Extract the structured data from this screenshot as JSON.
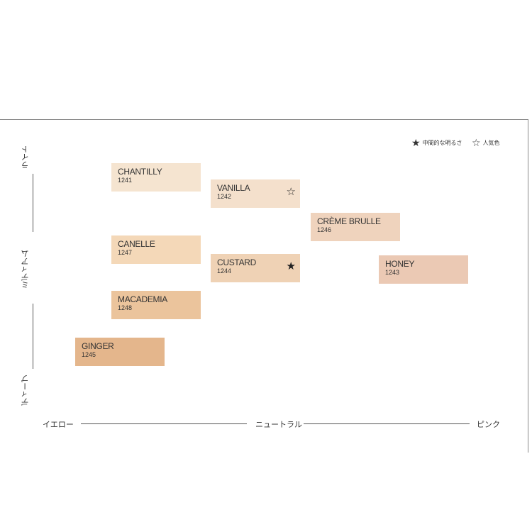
{
  "legend": {
    "mid_brightness": {
      "icon": "filled-star",
      "glyph": "★",
      "label": "中間的な明るさ"
    },
    "popular": {
      "icon": "outline-star",
      "glyph": "☆",
      "label": "人気色"
    }
  },
  "axes": {
    "vertical": {
      "top": "ライト",
      "middle": "ミディアム",
      "bottom": "ディープ"
    },
    "horizontal": {
      "left": "イエロー",
      "middle": "ニュートラル",
      "right": "ピンク"
    }
  },
  "shades": [
    {
      "name": "CHANTILLY",
      "code": "1241",
      "color": "#f5e4d0",
      "mark": ""
    },
    {
      "name": "VANILLA",
      "code": "1242",
      "color": "#f4e0cc",
      "mark": "☆"
    },
    {
      "name": "CRÈME BRULLE",
      "code": "1246",
      "color": "#efd3bd",
      "mark": ""
    },
    {
      "name": "CANELLE",
      "code": "1247",
      "color": "#f4d8b8",
      "mark": ""
    },
    {
      "name": "CUSTARD",
      "code": "1244",
      "color": "#efd2b5",
      "mark": "★"
    },
    {
      "name": "HONEY",
      "code": "1243",
      "color": "#ebc9b4",
      "mark": ""
    },
    {
      "name": "MACADEMIA",
      "code": "1248",
      "color": "#ebc49c",
      "mark": ""
    },
    {
      "name": "GINGER",
      "code": "1245",
      "color": "#e4b68c",
      "mark": ""
    }
  ]
}
